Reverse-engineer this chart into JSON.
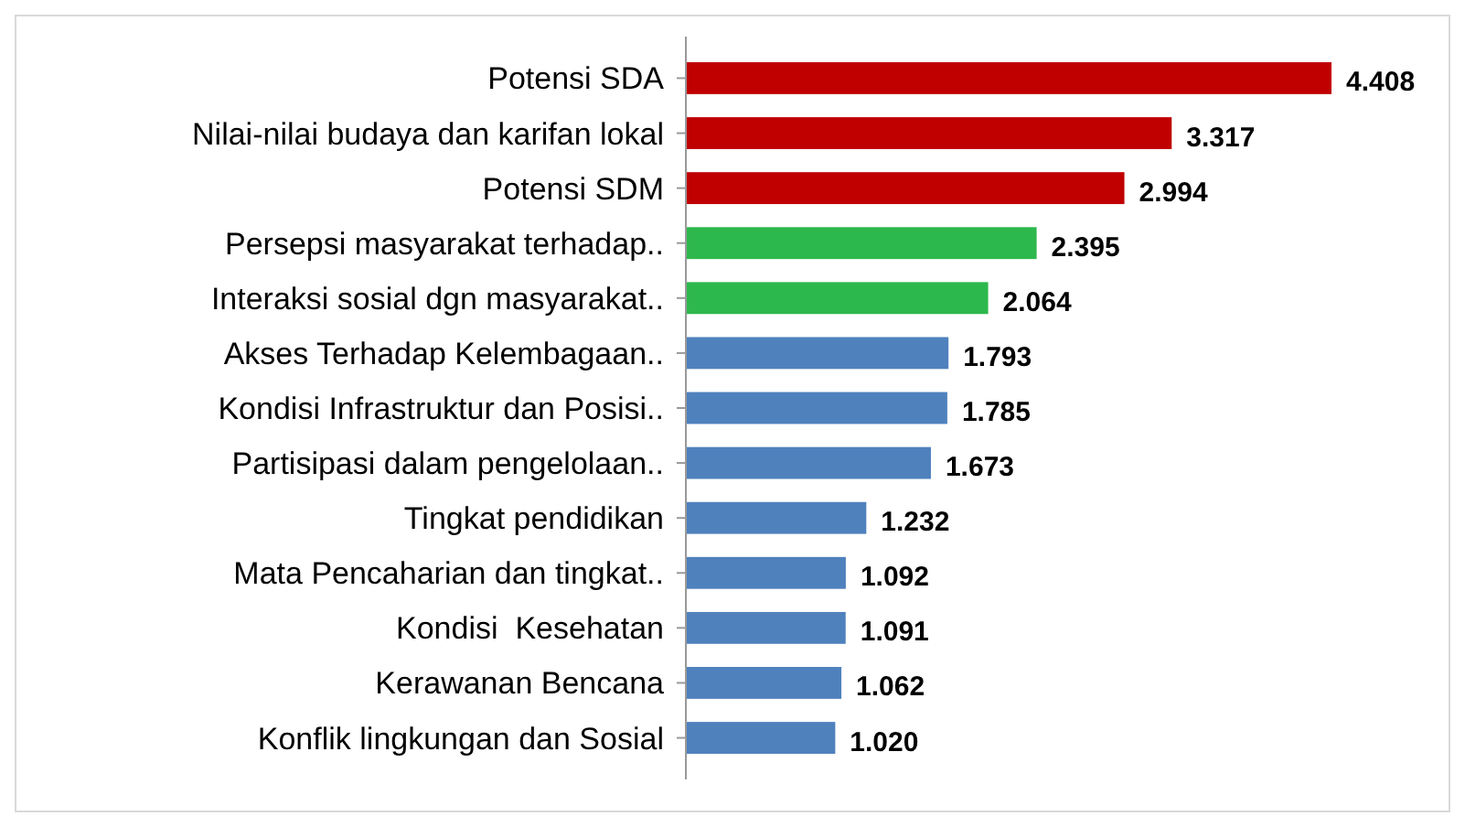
{
  "chart_data": {
    "type": "bar",
    "orientation": "horizontal",
    "categories": [
      "Potensi SDA",
      "Nilai-nilai budaya dan karifan lokal",
      "Potensi SDM",
      "Persepsi masyarakat terhadap..",
      "Interaksi sosial dgn masyarakat..",
      "Akses Terhadap Kelembagaan..",
      "Kondisi Infrastruktur dan Posisi..",
      "Partisipasi dalam pengelolaan..",
      "Tingkat pendidikan",
      "Mata Pencaharian dan tingkat..",
      "Kondisi  Kesehatan",
      "Kerawanan Bencana",
      "Konflik lingkungan dan Sosial"
    ],
    "values": [
      4.408,
      3.317,
      2.994,
      2.395,
      2.064,
      1.793,
      1.785,
      1.673,
      1.232,
      1.092,
      1.091,
      1.062,
      1.02
    ],
    "value_labels": [
      "4.408",
      "3.317",
      "2.994",
      "2.395",
      "2.064",
      "1.793",
      "1.785",
      "1.673",
      "1.232",
      "1.092",
      "1.091",
      "1.062",
      "1.020"
    ],
    "colors": [
      "#c00000",
      "#c00000",
      "#c00000",
      "#2db84d",
      "#2db84d",
      "#4f81bd",
      "#4f81bd",
      "#4f81bd",
      "#4f81bd",
      "#4f81bd",
      "#4f81bd",
      "#4f81bd",
      "#4f81bd"
    ],
    "grid": false
  }
}
